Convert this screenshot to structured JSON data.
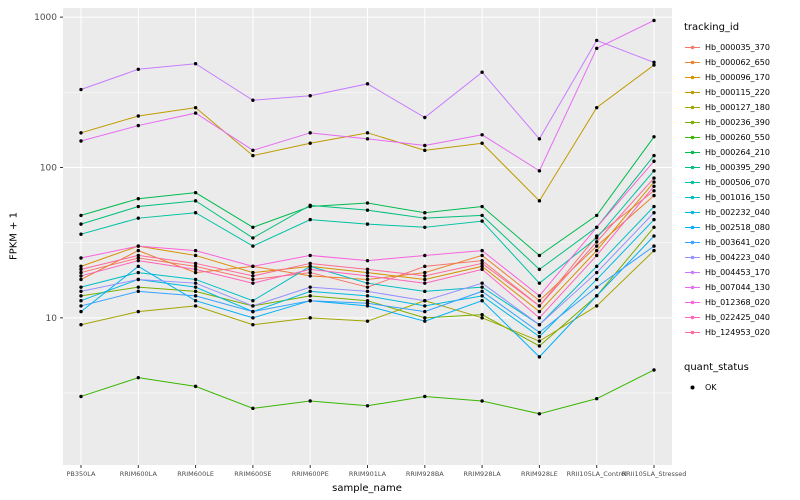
{
  "figure": {
    "background": "#FFFFFF",
    "panel_background": "#EBEBEB",
    "grid_color": "#FFFFFF",
    "axis_text_color": "#4D4D4D",
    "tick_mark_color": "#333333",
    "point_color": "#000000"
  },
  "legend": {
    "color_title": "tracking_id",
    "shape_title": "quant_status",
    "shape_items": [
      {
        "label": "OK",
        "color": "#000000"
      }
    ]
  },
  "chart_data": {
    "type": "line",
    "title": "",
    "xlabel": "sample_name",
    "ylabel": "FPKM + 1",
    "y_scale": "log10",
    "ylim": [
      1.05,
      1150
    ],
    "y_ticks": [
      10,
      100,
      1000
    ],
    "y_minor_ticks": [
      3.162,
      31.62,
      316.2
    ],
    "grid": true,
    "legend_position": "right",
    "points": {
      "shape": "circle",
      "color": "#000000",
      "size": 1.7
    },
    "x_categories": [
      "PB350LA",
      "RRIM600LA",
      "RRIM600LE",
      "RRIM600SE",
      "RRIM600PE",
      "RRIM901LA",
      "RRIM928BA",
      "RRIM928LA",
      "RRIM928LE",
      "RRII105LA_Control",
      "RRII105LA_Stressed"
    ],
    "series": [
      {
        "name": "Hb_000035_370",
        "color": "#F8766D",
        "values": [
          20,
          25,
          22,
          18,
          20,
          16,
          22,
          24,
          12,
          35,
          70
        ]
      },
      {
        "name": "Hb_000062_650",
        "color": "#EA8331",
        "values": [
          18,
          28,
          20,
          22,
          19,
          18,
          20,
          26,
          13,
          30,
          65
        ]
      },
      {
        "name": "Hb_000096_170",
        "color": "#D89000",
        "values": [
          22,
          30,
          26,
          20,
          22,
          20,
          18,
          22,
          11,
          28,
          80
        ]
      },
      {
        "name": "Hb_000115_220",
        "color": "#C09B00",
        "values": [
          170,
          220,
          250,
          120,
          145,
          170,
          130,
          145,
          60,
          250,
          480
        ]
      },
      {
        "name": "Hb_000127_180",
        "color": "#A3A500",
        "values": [
          9,
          11,
          12,
          9,
          10,
          9.5,
          13,
          10,
          7,
          12,
          28
        ]
      },
      {
        "name": "Hb_000236_390",
        "color": "#7CAE00",
        "values": [
          14,
          16,
          15,
          12,
          14,
          13,
          10,
          10.5,
          6.5,
          14,
          40
        ]
      },
      {
        "name": "Hb_000260_550",
        "color": "#39B600",
        "values": [
          3,
          4,
          3.5,
          2.5,
          2.8,
          2.6,
          3,
          2.8,
          2.3,
          2.9,
          4.5
        ]
      },
      {
        "name": "Hb_000264_210",
        "color": "#00BB4E",
        "values": [
          48,
          62,
          68,
          40,
          55,
          58,
          50,
          55,
          26,
          48,
          160
        ]
      },
      {
        "name": "Hb_000395_290",
        "color": "#00BF7D",
        "values": [
          42,
          55,
          60,
          34,
          56,
          52,
          46,
          48,
          21,
          40,
          120
        ]
      },
      {
        "name": "Hb_000506_070",
        "color": "#00C1A3",
        "values": [
          36,
          46,
          50,
          30,
          45,
          42,
          40,
          44,
          17,
          34,
          95
        ]
      },
      {
        "name": "Hb_001016_150",
        "color": "#00BFC4",
        "values": [
          16,
          20,
          18,
          13,
          22,
          17,
          15,
          16,
          9,
          22,
          55
        ]
      },
      {
        "name": "Hb_002232_040",
        "color": "#00BAE0",
        "values": [
          13,
          18,
          16,
          11,
          15,
          14,
          12,
          14,
          7.5,
          18,
          45
        ]
      },
      {
        "name": "Hb_002518_080",
        "color": "#00B0F6",
        "values": [
          11,
          22,
          13,
          10,
          13,
          12,
          9.5,
          13,
          5.5,
          14,
          35
        ]
      },
      {
        "name": "Hb_003641_020",
        "color": "#35A2FF",
        "values": [
          12,
          15,
          14,
          11,
          13,
          12.5,
          11,
          15,
          8,
          16,
          30
        ]
      },
      {
        "name": "Hb_004223_040",
        "color": "#9590FF",
        "values": [
          15,
          18,
          17,
          12,
          16,
          15,
          13,
          17,
          9,
          20,
          50
        ]
      },
      {
        "name": "Hb_004453_170",
        "color": "#C77CFF",
        "values": [
          330,
          450,
          490,
          280,
          300,
          360,
          215,
          430,
          155,
          700,
          500
        ]
      },
      {
        "name": "Hb_007044_130",
        "color": "#E76BF3",
        "values": [
          150,
          190,
          230,
          130,
          170,
          155,
          140,
          165,
          95,
          620,
          950
        ]
      },
      {
        "name": "Hb_012368_020",
        "color": "#FA62DB",
        "values": [
          25,
          30,
          28,
          22,
          26,
          24,
          26,
          28,
          14,
          40,
          110
        ]
      },
      {
        "name": "Hb_022425_040",
        "color": "#FF62BC",
        "values": [
          19,
          24,
          21,
          17,
          21,
          19,
          17,
          21,
          10,
          26,
          75
        ]
      },
      {
        "name": "Hb_124953_020",
        "color": "#FF6A98",
        "values": [
          21,
          26,
          23,
          19,
          23,
          21,
          19,
          23,
          12,
          32,
          85
        ]
      }
    ]
  }
}
